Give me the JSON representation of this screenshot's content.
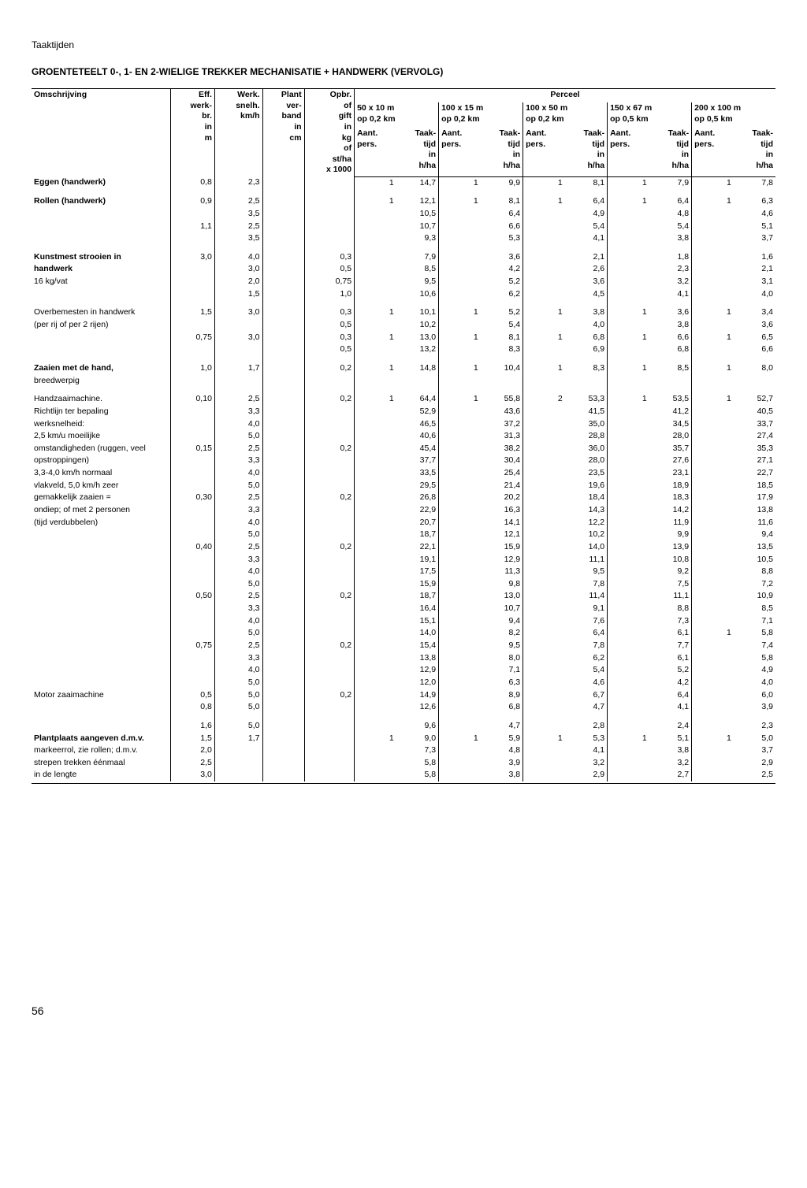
{
  "header": "Taaktijden",
  "title": "GROENTETEELT 0-, 1- EN 2-WIELIGE TREKKER MECHANISATIE + HANDWERK (VERVOLG)",
  "page_number": "56",
  "columns": {
    "omschrijving": "Omschrijving",
    "eff": "Eff.\nwerk-\nbr.\nin\nm",
    "werk": "Werk.\nsnelh.\nkm/h",
    "plant": "Plant\nver-\nband\nin\ncm",
    "opbr": "Opbr.\nof\ngift\nin\nkg\nof\nst/ha\nx 1000",
    "perceel": "Perceel",
    "parcels": [
      {
        "dim": "50 x 10 m",
        "op": "op 0,2 km"
      },
      {
        "dim": "100 x 15 m",
        "op": "op 0,2 km"
      },
      {
        "dim": "100 x 50 m",
        "op": "op 0,2 km"
      },
      {
        "dim": "150 x 67 m",
        "op": "op 0,5 km"
      },
      {
        "dim": "200 x 100 m",
        "op": "op 0,5 km"
      }
    ],
    "aant": "Aant.\npers.",
    "taak": "Taak-\ntijd\nin\nh/ha"
  },
  "rows": [
    {
      "desc": "Eggen (handwerk)",
      "bold": true,
      "eff": "0,8",
      "werk": "2,3",
      "plant": "",
      "opbr": "",
      "v": [
        [
          "1",
          "14,7"
        ],
        [
          "1",
          "9,9"
        ],
        [
          "1",
          "8,1"
        ],
        [
          "1",
          "7,9"
        ],
        [
          "1",
          "7,8"
        ]
      ]
    },
    {
      "desc": "Rollen (handwerk)",
      "bold": true,
      "eff": "0,9",
      "werk": "2,5",
      "plant": "",
      "opbr": "",
      "v": [
        [
          "1",
          "12,1"
        ],
        [
          "1",
          "8,1"
        ],
        [
          "1",
          "6,4"
        ],
        [
          "1",
          "6,4"
        ],
        [
          "1",
          "6,3"
        ]
      ]
    },
    {
      "desc": "",
      "eff": "",
      "werk": "3,5",
      "plant": "",
      "opbr": "",
      "v": [
        [
          "",
          "10,5"
        ],
        [
          "",
          "6,4"
        ],
        [
          "",
          "4,9"
        ],
        [
          "",
          "4,8"
        ],
        [
          "",
          "4,6"
        ]
      ]
    },
    {
      "desc": "",
      "eff": "1,1",
      "werk": "2,5",
      "plant": "",
      "opbr": "",
      "v": [
        [
          "",
          "10,7"
        ],
        [
          "",
          "6,6"
        ],
        [
          "",
          "5,4"
        ],
        [
          "",
          "5,4"
        ],
        [
          "",
          "5,1"
        ]
      ]
    },
    {
      "desc": "",
      "eff": "",
      "werk": "3,5",
      "plant": "",
      "opbr": "",
      "v": [
        [
          "",
          "9,3"
        ],
        [
          "",
          "5,3"
        ],
        [
          "",
          "4,1"
        ],
        [
          "",
          "3,8"
        ],
        [
          "",
          "3,7"
        ]
      ]
    },
    {
      "desc": "Kunstmest strooien in",
      "bold": true,
      "eff": "3,0",
      "werk": "4,0",
      "plant": "",
      "opbr": "0,3",
      "v": [
        [
          "",
          "7,9"
        ],
        [
          "",
          "3,6"
        ],
        [
          "",
          "2,1"
        ],
        [
          "",
          "1,8"
        ],
        [
          "",
          "1,6"
        ]
      ]
    },
    {
      "desc": "handwerk",
      "bold": true,
      "eff": "",
      "werk": "3,0",
      "plant": "",
      "opbr": "0,5",
      "v": [
        [
          "",
          "8,5"
        ],
        [
          "",
          "4,2"
        ],
        [
          "",
          "2,6"
        ],
        [
          "",
          "2,3"
        ],
        [
          "",
          "2,1"
        ]
      ]
    },
    {
      "desc": "16 kg/vat",
      "eff": "",
      "werk": "2,0",
      "plant": "",
      "opbr": "0,75",
      "v": [
        [
          "",
          "9,5"
        ],
        [
          "",
          "5,2"
        ],
        [
          "",
          "3,6"
        ],
        [
          "",
          "3,2"
        ],
        [
          "",
          "3,1"
        ]
      ]
    },
    {
      "desc": "",
      "eff": "",
      "werk": "1,5",
      "plant": "",
      "opbr": "1,0",
      "v": [
        [
          "",
          "10,6"
        ],
        [
          "",
          "6,2"
        ],
        [
          "",
          "4,5"
        ],
        [
          "",
          "4,1"
        ],
        [
          "",
          "4,0"
        ]
      ]
    },
    {
      "desc": "Overbemesten in handwerk",
      "eff": "1,5",
      "werk": "3,0",
      "plant": "",
      "opbr": "0,3",
      "v": [
        [
          "1",
          "10,1"
        ],
        [
          "1",
          "5,2"
        ],
        [
          "1",
          "3,8"
        ],
        [
          "1",
          "3,6"
        ],
        [
          "1",
          "3,4"
        ]
      ]
    },
    {
      "desc": "(per rij of per 2 rijen)",
      "eff": "",
      "werk": "",
      "plant": "",
      "opbr": "0,5",
      "v": [
        [
          "",
          "10,2"
        ],
        [
          "",
          "5,4"
        ],
        [
          "",
          "4,0"
        ],
        [
          "",
          "3,8"
        ],
        [
          "",
          "3,6"
        ]
      ]
    },
    {
      "desc": "",
      "eff": "0,75",
      "werk": "3,0",
      "plant": "",
      "opbr": "0,3",
      "v": [
        [
          "1",
          "13,0"
        ],
        [
          "1",
          "8,1"
        ],
        [
          "1",
          "6,8"
        ],
        [
          "1",
          "6,6"
        ],
        [
          "1",
          "6,5"
        ]
      ]
    },
    {
      "desc": "",
      "eff": "",
      "werk": "",
      "plant": "",
      "opbr": "0,5",
      "v": [
        [
          "",
          "13,2"
        ],
        [
          "",
          "8,3"
        ],
        [
          "",
          "6,9"
        ],
        [
          "",
          "6,8"
        ],
        [
          "",
          "6,6"
        ]
      ]
    },
    {
      "desc": "Zaaien met de hand,",
      "bold": true,
      "eff": "1,0",
      "werk": "1,7",
      "plant": "",
      "opbr": "0,2",
      "v": [
        [
          "1",
          "14,8"
        ],
        [
          "1",
          "10,4"
        ],
        [
          "1",
          "8,3"
        ],
        [
          "1",
          "8,5"
        ],
        [
          "1",
          "8,0"
        ]
      ]
    },
    {
      "desc": "breedwerpig",
      "eff": "",
      "werk": "",
      "plant": "",
      "opbr": "",
      "v": [
        [
          "",
          ""
        ],
        [
          "",
          ""
        ],
        [
          "",
          ""
        ],
        [
          "",
          ""
        ],
        [
          "",
          ""
        ]
      ]
    },
    {
      "desc": "Handzaaimachine.",
      "eff": "0,10",
      "werk": "2,5",
      "plant": "",
      "opbr": "0,2",
      "v": [
        [
          "1",
          "64,4"
        ],
        [
          "1",
          "55,8"
        ],
        [
          "2",
          "53,3"
        ],
        [
          "1",
          "53,5"
        ],
        [
          "1",
          "52,7"
        ]
      ]
    },
    {
      "desc": "Richtlijn ter bepaling",
      "eff": "",
      "werk": "3,3",
      "plant": "",
      "opbr": "",
      "v": [
        [
          "",
          "52,9"
        ],
        [
          "",
          "43,6"
        ],
        [
          "",
          "41,5"
        ],
        [
          "",
          "41,2"
        ],
        [
          "",
          "40,5"
        ]
      ]
    },
    {
      "desc": "werksnelheid:",
      "eff": "",
      "werk": "4,0",
      "plant": "",
      "opbr": "",
      "v": [
        [
          "",
          "46,5"
        ],
        [
          "",
          "37,2"
        ],
        [
          "",
          "35,0"
        ],
        [
          "",
          "34,5"
        ],
        [
          "",
          "33,7"
        ]
      ]
    },
    {
      "desc": "2,5 km/u moeilijke",
      "eff": "",
      "werk": "5,0",
      "plant": "",
      "opbr": "",
      "v": [
        [
          "",
          "40,6"
        ],
        [
          "",
          "31,3"
        ],
        [
          "",
          "28,8"
        ],
        [
          "",
          "28,0"
        ],
        [
          "",
          "27,4"
        ]
      ]
    },
    {
      "desc": "omstandigheden (ruggen, veel",
      "eff": "0,15",
      "werk": "2,5",
      "plant": "",
      "opbr": "0,2",
      "v": [
        [
          "",
          "45,4"
        ],
        [
          "",
          "38,2"
        ],
        [
          "",
          "36,0"
        ],
        [
          "",
          "35,7"
        ],
        [
          "",
          "35,3"
        ]
      ]
    },
    {
      "desc": "opstroppingen)",
      "eff": "",
      "werk": "3,3",
      "plant": "",
      "opbr": "",
      "v": [
        [
          "",
          "37,7"
        ],
        [
          "",
          "30,4"
        ],
        [
          "",
          "28,0"
        ],
        [
          "",
          "27,6"
        ],
        [
          "",
          "27,1"
        ]
      ]
    },
    {
      "desc": "3,3-4,0 km/h normaal",
      "eff": "",
      "werk": "4,0",
      "plant": "",
      "opbr": "",
      "v": [
        [
          "",
          "33,5"
        ],
        [
          "",
          "25,4"
        ],
        [
          "",
          "23,5"
        ],
        [
          "",
          "23,1"
        ],
        [
          "",
          "22,7"
        ]
      ]
    },
    {
      "desc": "vlakveld, 5,0 km/h zeer",
      "eff": "",
      "werk": "5,0",
      "plant": "",
      "opbr": "",
      "v": [
        [
          "",
          "29,5"
        ],
        [
          "",
          "21,4"
        ],
        [
          "",
          "19,6"
        ],
        [
          "",
          "18,9"
        ],
        [
          "",
          "18,5"
        ]
      ]
    },
    {
      "desc": "gemakkelijk zaaien =",
      "eff": "0,30",
      "werk": "2,5",
      "plant": "",
      "opbr": "0,2",
      "v": [
        [
          "",
          "26,8"
        ],
        [
          "",
          "20,2"
        ],
        [
          "",
          "18,4"
        ],
        [
          "",
          "18,3"
        ],
        [
          "",
          "17,9"
        ]
      ]
    },
    {
      "desc": "ondiep; of met 2 personen",
      "eff": "",
      "werk": "3,3",
      "plant": "",
      "opbr": "",
      "v": [
        [
          "",
          "22,9"
        ],
        [
          "",
          "16,3"
        ],
        [
          "",
          "14,3"
        ],
        [
          "",
          "14,2"
        ],
        [
          "",
          "13,8"
        ]
      ]
    },
    {
      "desc": "(tijd verdubbelen)",
      "eff": "",
      "werk": "4,0",
      "plant": "",
      "opbr": "",
      "v": [
        [
          "",
          "20,7"
        ],
        [
          "",
          "14,1"
        ],
        [
          "",
          "12,2"
        ],
        [
          "",
          "11,9"
        ],
        [
          "",
          "11,6"
        ]
      ]
    },
    {
      "desc": "",
      "eff": "",
      "werk": "5,0",
      "plant": "",
      "opbr": "",
      "v": [
        [
          "",
          "18,7"
        ],
        [
          "",
          "12,1"
        ],
        [
          "",
          "10,2"
        ],
        [
          "",
          "9,9"
        ],
        [
          "",
          "9,4"
        ]
      ]
    },
    {
      "desc": "",
      "eff": "0,40",
      "werk": "2,5",
      "plant": "",
      "opbr": "0,2",
      "v": [
        [
          "",
          "22,1"
        ],
        [
          "",
          "15,9"
        ],
        [
          "",
          "14,0"
        ],
        [
          "",
          "13,9"
        ],
        [
          "",
          "13,5"
        ]
      ]
    },
    {
      "desc": "",
      "eff": "",
      "werk": "3,3",
      "plant": "",
      "opbr": "",
      "v": [
        [
          "",
          "19,1"
        ],
        [
          "",
          "12,9"
        ],
        [
          "",
          "11,1"
        ],
        [
          "",
          "10,8"
        ],
        [
          "",
          "10,5"
        ]
      ]
    },
    {
      "desc": "",
      "eff": "",
      "werk": "4,0",
      "plant": "",
      "opbr": "",
      "v": [
        [
          "",
          "17,5"
        ],
        [
          "",
          "11,3"
        ],
        [
          "",
          "9,5"
        ],
        [
          "",
          "9,2"
        ],
        [
          "",
          "8,8"
        ]
      ]
    },
    {
      "desc": "",
      "eff": "",
      "werk": "5,0",
      "plant": "",
      "opbr": "",
      "v": [
        [
          "",
          "15,9"
        ],
        [
          "",
          "9,8"
        ],
        [
          "",
          "7,8"
        ],
        [
          "",
          "7,5"
        ],
        [
          "",
          "7,2"
        ]
      ]
    },
    {
      "desc": "",
      "eff": "0,50",
      "werk": "2,5",
      "plant": "",
      "opbr": "0,2",
      "v": [
        [
          "",
          "18,7"
        ],
        [
          "",
          "13,0"
        ],
        [
          "",
          "11,4"
        ],
        [
          "",
          "11,1"
        ],
        [
          "",
          "10,9"
        ]
      ]
    },
    {
      "desc": "",
      "eff": "",
      "werk": "3,3",
      "plant": "",
      "opbr": "",
      "v": [
        [
          "",
          "16,4"
        ],
        [
          "",
          "10,7"
        ],
        [
          "",
          "9,1"
        ],
        [
          "",
          "8,8"
        ],
        [
          "",
          "8,5"
        ]
      ]
    },
    {
      "desc": "",
      "eff": "",
      "werk": "4,0",
      "plant": "",
      "opbr": "",
      "v": [
        [
          "",
          "15,1"
        ],
        [
          "",
          "9,4"
        ],
        [
          "",
          "7,6"
        ],
        [
          "",
          "7,3"
        ],
        [
          "",
          "7,1"
        ]
      ]
    },
    {
      "desc": "",
      "eff": "",
      "werk": "5,0",
      "plant": "",
      "opbr": "",
      "v": [
        [
          "",
          "14,0"
        ],
        [
          "",
          "8,2"
        ],
        [
          "",
          "6,4"
        ],
        [
          "",
          "6,1"
        ],
        [
          "1",
          "5,8"
        ]
      ]
    },
    {
      "desc": "",
      "eff": "0,75",
      "werk": "2,5",
      "plant": "",
      "opbr": "0,2",
      "v": [
        [
          "",
          "15,4"
        ],
        [
          "",
          "9,5"
        ],
        [
          "",
          "7,8"
        ],
        [
          "",
          "7,7"
        ],
        [
          "",
          "7,4"
        ]
      ]
    },
    {
      "desc": "",
      "eff": "",
      "werk": "3,3",
      "plant": "",
      "opbr": "",
      "v": [
        [
          "",
          "13,8"
        ],
        [
          "",
          "8,0"
        ],
        [
          "",
          "6,2"
        ],
        [
          "",
          "6,1"
        ],
        [
          "",
          "5,8"
        ]
      ]
    },
    {
      "desc": "",
      "eff": "",
      "werk": "4,0",
      "plant": "",
      "opbr": "",
      "v": [
        [
          "",
          "12,9"
        ],
        [
          "",
          "7,1"
        ],
        [
          "",
          "5,4"
        ],
        [
          "",
          "5,2"
        ],
        [
          "",
          "4,9"
        ]
      ]
    },
    {
      "desc": "",
      "eff": "",
      "werk": "5,0",
      "plant": "",
      "opbr": "",
      "v": [
        [
          "",
          "12,0"
        ],
        [
          "",
          "6,3"
        ],
        [
          "",
          "4,6"
        ],
        [
          "",
          "4,2"
        ],
        [
          "",
          "4,0"
        ]
      ]
    },
    {
      "desc": "Motor zaaimachine",
      "eff": "0,5",
      "werk": "5,0",
      "plant": "",
      "opbr": "0,2",
      "v": [
        [
          "",
          "14,9"
        ],
        [
          "",
          "8,9"
        ],
        [
          "",
          "6,7"
        ],
        [
          "",
          "6,4"
        ],
        [
          "",
          "6,0"
        ]
      ]
    },
    {
      "desc": "",
      "eff": "0,8",
      "werk": "5,0",
      "plant": "",
      "opbr": "",
      "v": [
        [
          "",
          "12,6"
        ],
        [
          "",
          "6,8"
        ],
        [
          "",
          "4,7"
        ],
        [
          "",
          "4,1"
        ],
        [
          "",
          "3,9"
        ]
      ]
    },
    {
      "desc": "",
      "eff": "1,6",
      "werk": "5,0",
      "plant": "",
      "opbr": "",
      "v": [
        [
          "",
          "9,6"
        ],
        [
          "",
          "4,7"
        ],
        [
          "",
          "2,8"
        ],
        [
          "",
          "2,4"
        ],
        [
          "",
          "2,3"
        ]
      ]
    },
    {
      "desc": "Plantplaats aangeven d.m.v.",
      "bold": true,
      "eff": "1,5",
      "werk": "1,7",
      "plant": "",
      "opbr": "",
      "v": [
        [
          "1",
          "9,0"
        ],
        [
          "1",
          "5,9"
        ],
        [
          "1",
          "5,3"
        ],
        [
          "1",
          "5,1"
        ],
        [
          "1",
          "5,0"
        ]
      ]
    },
    {
      "desc": "markeerrol, zie rollen; d.m.v.",
      "eff": "2,0",
      "werk": "",
      "plant": "",
      "opbr": "",
      "v": [
        [
          "",
          "7,3"
        ],
        [
          "",
          "4,8"
        ],
        [
          "",
          "4,1"
        ],
        [
          "",
          "3,8"
        ],
        [
          "",
          "3,7"
        ]
      ]
    },
    {
      "desc": "strepen trekken éénmaal",
      "eff": "2,5",
      "werk": "",
      "plant": "",
      "opbr": "",
      "v": [
        [
          "",
          "5,8"
        ],
        [
          "",
          "3,9"
        ],
        [
          "",
          "3,2"
        ],
        [
          "",
          "3,2"
        ],
        [
          "",
          "2,9"
        ]
      ]
    },
    {
      "desc": "in de lengte",
      "eff": "3,0",
      "werk": "",
      "plant": "",
      "opbr": "",
      "v": [
        [
          "",
          "5,8"
        ],
        [
          "",
          "3,8"
        ],
        [
          "",
          "2,9"
        ],
        [
          "",
          "2,7"
        ],
        [
          "",
          "2,5"
        ]
      ]
    }
  ],
  "group_breaks_after": [
    0,
    4,
    8,
    12,
    14,
    40
  ]
}
